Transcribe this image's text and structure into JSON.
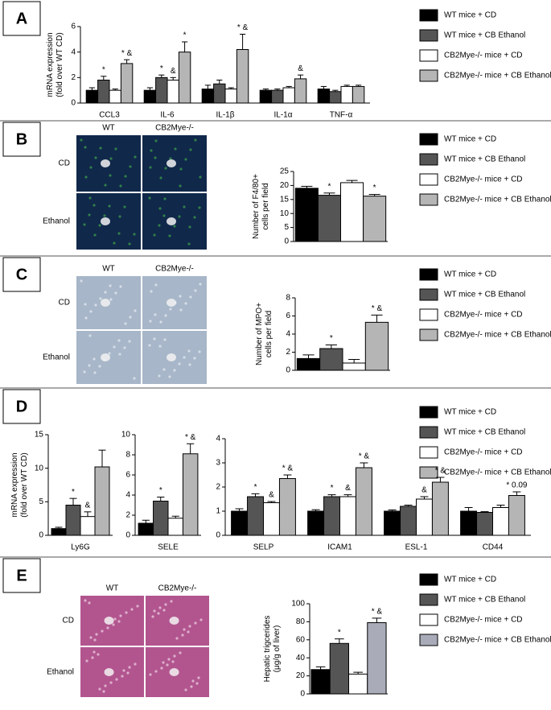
{
  "chart_data": [
    {
      "type": "bar",
      "panel": "A",
      "ylabel": [
        "mRNA expression",
        "(fold over WT CD)"
      ],
      "categories": [
        "CCL3",
        "IL-6",
        "IL-1β",
        "IL-1α",
        "TNF-α"
      ],
      "ylim": [
        0,
        6
      ],
      "yticks": [
        0,
        2,
        4,
        6
      ],
      "series": [
        {
          "name": "WT mice + CD",
          "color": "#000000",
          "values": [
            1.0,
            1.0,
            1.1,
            1.0,
            1.1
          ],
          "errors": [
            0.2,
            0.2,
            0.3,
            0.1,
            0.2
          ],
          "annotations": [
            null,
            null,
            null,
            null,
            null
          ]
        },
        {
          "name": "WT mice + CB Ethanol",
          "color": "#555555",
          "values": [
            1.8,
            2.0,
            1.5,
            1.0,
            0.9
          ],
          "errors": [
            0.3,
            0.2,
            0.3,
            0.1,
            0.1
          ],
          "annotations": [
            "*",
            "*",
            null,
            null,
            null
          ]
        },
        {
          "name": "CB2Mye-/- mice + CD",
          "color": "#ffffff",
          "values": [
            1.0,
            1.8,
            1.1,
            1.2,
            1.3
          ],
          "errors": [
            0.1,
            0.2,
            0.1,
            0.1,
            0.1
          ],
          "annotations": [
            null,
            "&",
            null,
            null,
            null
          ]
        },
        {
          "name": "CB2Mye-/- mice + CB Ethanol",
          "color": "#b5b5b5",
          "values": [
            3.1,
            4.0,
            4.2,
            1.9,
            1.3
          ],
          "errors": [
            0.3,
            0.8,
            1.2,
            0.3,
            0.1
          ],
          "annotations": [
            "* &",
            "*",
            "* &",
            "&",
            null
          ]
        }
      ]
    },
    {
      "type": "bar",
      "panel": "B",
      "ylabel": [
        "Number of F4/80+",
        "cells per field"
      ],
      "image_labels": {
        "columns": [
          "WT",
          "CB2Mye-/-"
        ],
        "rows": [
          "CD",
          "Ethanol"
        ]
      },
      "categories": [
        null
      ],
      "ylim": [
        0,
        25
      ],
      "yticks": [
        0,
        5,
        10,
        15,
        20,
        25
      ],
      "series": [
        {
          "name": "WT mice + CD",
          "color": "#000000",
          "values": [
            19
          ],
          "errors": [
            0.7
          ],
          "annotations": [
            null
          ]
        },
        {
          "name": "WT mice + CB Ethanol",
          "color": "#555555",
          "values": [
            16.5
          ],
          "errors": [
            0.8
          ],
          "annotations": [
            "*"
          ]
        },
        {
          "name": "CB2Mye-/- mice + CD",
          "color": "#ffffff",
          "values": [
            21
          ],
          "errors": [
            0.8
          ],
          "annotations": [
            null
          ]
        },
        {
          "name": "CB2Mye-/- mice + CB Ethanol",
          "color": "#b5b5b5",
          "values": [
            16.2
          ],
          "errors": [
            0.6
          ],
          "annotations": [
            "*"
          ]
        }
      ]
    },
    {
      "type": "bar",
      "panel": "C",
      "ylabel": [
        "Number of MPO+",
        "cells per field"
      ],
      "image_labels": {
        "columns": [
          "WT",
          "CB2Mye-/-"
        ],
        "rows": [
          "CD",
          "Ethanol"
        ]
      },
      "categories": [
        null
      ],
      "ylim": [
        0,
        8
      ],
      "yticks": [
        0,
        2,
        4,
        6,
        8
      ],
      "series": [
        {
          "name": "WT mice + CD",
          "color": "#000000",
          "values": [
            1.3
          ],
          "errors": [
            0.4
          ],
          "annotations": [
            null
          ]
        },
        {
          "name": "WT mice + CB Ethanol",
          "color": "#555555",
          "values": [
            2.4
          ],
          "errors": [
            0.4
          ],
          "annotations": [
            "*"
          ]
        },
        {
          "name": "CB2Mye-/- mice + CD",
          "color": "#ffffff",
          "values": [
            0.8
          ],
          "errors": [
            0.4
          ],
          "annotations": [
            null
          ]
        },
        {
          "name": "CB2Mye-/- mice + CB Ethanol",
          "color": "#b5b5b5",
          "values": [
            5.3
          ],
          "errors": [
            0.8
          ],
          "annotations": [
            "* &"
          ]
        }
      ]
    },
    {
      "type": "bar",
      "panel": "D",
      "ylabel": [
        "mRNA expression",
        "(fold over WT CD)"
      ],
      "categories": [
        "Ly6G"
      ],
      "ylim": [
        0,
        15
      ],
      "yticks": [
        0,
        5,
        10,
        15
      ],
      "series": [
        {
          "name": "WT mice + CD",
          "color": "#000000",
          "values": [
            1.0
          ],
          "errors": [
            0.2
          ],
          "annotations": [
            null
          ]
        },
        {
          "name": "WT mice + CB Ethanol",
          "color": "#555555",
          "values": [
            4.5
          ],
          "errors": [
            1.0
          ],
          "annotations": [
            "*"
          ]
        },
        {
          "name": "CB2Mye-/- mice + CD",
          "color": "#ffffff",
          "values": [
            2.8
          ],
          "errors": [
            0.7
          ],
          "annotations": [
            "&"
          ]
        },
        {
          "name": "CB2Mye-/- mice + CB Ethanol",
          "color": "#b5b5b5",
          "values": [
            10.2
          ],
          "errors": [
            2.5
          ],
          "annotations": [
            null
          ]
        }
      ]
    },
    {
      "type": "bar",
      "categories": [
        "SELE"
      ],
      "ylim": [
        0,
        10
      ],
      "yticks": [
        0,
        2,
        4,
        6,
        8,
        10
      ],
      "series": [
        {
          "name": "WT mice + CD",
          "color": "#000000",
          "values": [
            1.2
          ],
          "errors": [
            0.3
          ],
          "annotations": [
            null
          ]
        },
        {
          "name": "WT mice + CB Ethanol",
          "color": "#555555",
          "values": [
            3.4
          ],
          "errors": [
            0.4
          ],
          "annotations": [
            "*"
          ]
        },
        {
          "name": "CB2Mye-/- mice + CD",
          "color": "#ffffff",
          "values": [
            1.7
          ],
          "errors": [
            0.2
          ],
          "annotations": [
            null
          ]
        },
        {
          "name": "CB2Mye-/- mice + CB Ethanol",
          "color": "#b5b5b5",
          "values": [
            8.1
          ],
          "errors": [
            1.0
          ],
          "annotations": [
            "* &"
          ]
        }
      ]
    },
    {
      "type": "bar",
      "categories": [
        "SELP",
        "ICAM1",
        "ESL-1",
        "CD44"
      ],
      "ylim": [
        0,
        4
      ],
      "yticks": [
        0,
        1,
        2,
        3,
        4
      ],
      "series": [
        {
          "name": "WT mice + CD",
          "color": "#000000",
          "values": [
            1.0,
            1.0,
            1.0,
            1.0
          ],
          "errors": [
            0.1,
            0.06,
            0.05,
            0.15
          ],
          "annotations": [
            null,
            null,
            null,
            null
          ]
        },
        {
          "name": "WT mice + CB Ethanol",
          "color": "#555555",
          "values": [
            1.6,
            1.6,
            1.2,
            0.95
          ],
          "errors": [
            0.12,
            0.08,
            0.05,
            0.03
          ],
          "annotations": [
            "*",
            "*",
            null,
            null
          ]
        },
        {
          "name": "CB2Mye-/- mice + CD",
          "color": "#ffffff",
          "values": [
            1.35,
            1.6,
            1.5,
            1.15
          ],
          "errors": [
            0.05,
            0.08,
            0.1,
            0.1
          ],
          "annotations": [
            "&",
            "&",
            "&",
            null
          ]
        },
        {
          "name": "CB2Mye-/- mice + CB Ethanol",
          "color": "#b5b5b5",
          "values": [
            2.35,
            2.8,
            2.2,
            1.65
          ],
          "errors": [
            0.15,
            0.2,
            0.2,
            0.15
          ],
          "annotations": [
            "* &",
            "* &",
            "* &",
            "* 0.09"
          ]
        }
      ]
    },
    {
      "type": "bar",
      "panel": "E",
      "ylabel": [
        "Hepatic trigcerides",
        "(μg/g of liver)"
      ],
      "image_labels": {
        "columns": [
          "WT",
          "CB2Mye-/-"
        ],
        "rows": [
          "CD",
          "Ethanol"
        ]
      },
      "categories": [
        null
      ],
      "ylim": [
        0,
        100
      ],
      "yticks": [
        0,
        20,
        40,
        60,
        80,
        100
      ],
      "series": [
        {
          "name": "WT mice + CD",
          "color": "#000000",
          "values": [
            27
          ],
          "errors": [
            3
          ],
          "annotations": [
            null
          ]
        },
        {
          "name": "WT mice + CB Ethanol",
          "color": "#555555",
          "values": [
            56
          ],
          "errors": [
            5
          ],
          "annotations": [
            "*"
          ]
        },
        {
          "name": "CB2Mye-/- mice + CD",
          "color": "#ffffff",
          "values": [
            22
          ],
          "errors": [
            2
          ],
          "annotations": [
            null
          ]
        },
        {
          "name": "CB2Mye-/- mice + CB Ethanol",
          "color": "#a9acb8",
          "values": [
            79
          ],
          "errors": [
            5
          ],
          "annotations": [
            "* &"
          ]
        }
      ]
    }
  ]
}
